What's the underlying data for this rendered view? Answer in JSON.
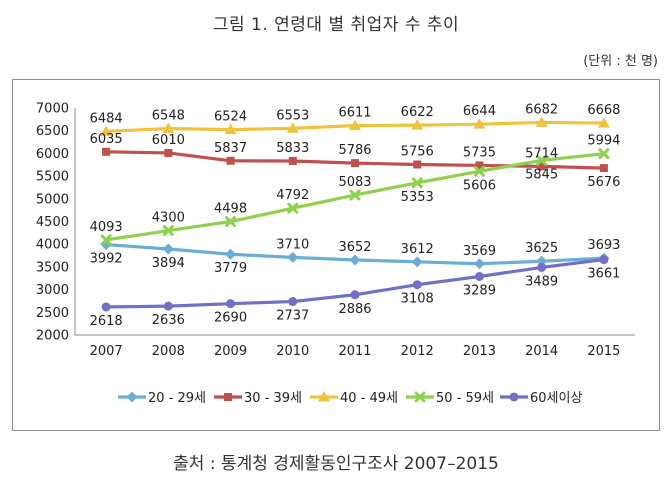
{
  "title": "그림 1. 연령대 별 취업자 수 추이",
  "unit_note": "(단위 : 천 명)",
  "source": "출처 : 통계청 경제활동인구조사 2007–2015",
  "chart_data": {
    "type": "line",
    "categories": [
      "2007",
      "2008",
      "2009",
      "2010",
      "2011",
      "2012",
      "2013",
      "2014",
      "2015"
    ],
    "ylim": [
      2000,
      7000
    ],
    "yticks": [
      "2000",
      "2500",
      "3000",
      "3500",
      "4000",
      "4500",
      "5000",
      "5500",
      "6000",
      "6500",
      "7000"
    ],
    "xlabel": "",
    "ylabel": "",
    "grid": false,
    "legend_position": "bottom",
    "series": [
      {
        "name": "20 - 29세",
        "color": "#6aaed6",
        "marker": "diamond",
        "values": [
          3992,
          3894,
          3779,
          3710,
          3652,
          3612,
          3569,
          3625,
          3693
        ],
        "labels": [
          "3992",
          "3894",
          "3779",
          "3710",
          "3652",
          "3612",
          "3569",
          "3625",
          "3693"
        ],
        "label_pos": [
          "below",
          "below",
          "below",
          "above",
          "above",
          "above",
          "above",
          "above",
          "above"
        ]
      },
      {
        "name": "30 - 39세",
        "color": "#c0504d",
        "marker": "square",
        "values": [
          6035,
          6010,
          5837,
          5833,
          5786,
          5756,
          5735,
          5714,
          5676
        ],
        "labels": [
          "6035",
          "6010",
          "5837",
          "5833",
          "5786",
          "5756",
          "5735",
          "5714",
          "5676"
        ],
        "label_pos": [
          "above",
          "above",
          "above",
          "above",
          "above",
          "above",
          "above",
          "above",
          "below"
        ]
      },
      {
        "name": "40 - 49세",
        "color": "#f0c33c",
        "marker": "triangle",
        "values": [
          6484,
          6548,
          6524,
          6553,
          6611,
          6622,
          6644,
          6682,
          6668
        ],
        "labels": [
          "6484",
          "6548",
          "6524",
          "6553",
          "6611",
          "6622",
          "6644",
          "6682",
          "6668"
        ],
        "label_pos": [
          "above",
          "above",
          "above",
          "above",
          "above",
          "above",
          "above",
          "above",
          "above"
        ]
      },
      {
        "name": "50 - 59세",
        "color": "#8fd14f",
        "marker": "x",
        "values": [
          4093,
          4300,
          4498,
          4792,
          5083,
          5353,
          5606,
          5845,
          5994
        ],
        "labels": [
          "4093",
          "4300",
          "4498",
          "4792",
          "5083",
          "5353",
          "5606",
          "5845",
          "5994"
        ],
        "label_pos": [
          "above",
          "above",
          "above",
          "above",
          "above",
          "below",
          "below",
          "below",
          "above"
        ]
      },
      {
        "name": "60세이상",
        "color": "#7070c8",
        "marker": "circle",
        "values": [
          2618,
          2636,
          2690,
          2737,
          2886,
          3108,
          3289,
          3489,
          3661
        ],
        "labels": [
          "2618",
          "2636",
          "2690",
          "2737",
          "2886",
          "3108",
          "3289",
          "3489",
          "3661"
        ],
        "label_pos": [
          "below",
          "below",
          "below",
          "below",
          "below",
          "below",
          "below",
          "below",
          "below"
        ]
      }
    ]
  }
}
